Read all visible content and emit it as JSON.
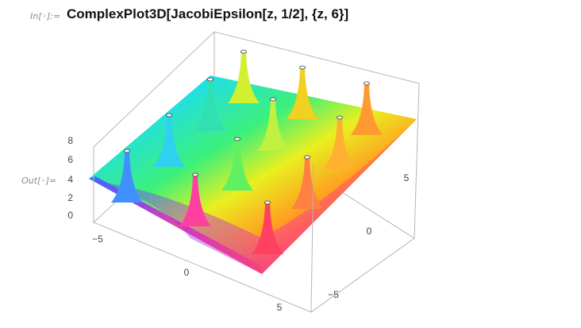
{
  "input": {
    "label": "In[◦]:=",
    "code": "ComplexPlot3D[JacobiEpsilon[z, 1/2], {z, 6}]"
  },
  "output": {
    "label": "Out[◦]=",
    "plot": {
      "z_ticks": [
        "8",
        "6",
        "4",
        "2",
        "0"
      ],
      "x_ticks": [
        "−5",
        "0",
        "5"
      ],
      "y_ticks": [
        "5",
        "0",
        "−5"
      ]
    }
  }
}
